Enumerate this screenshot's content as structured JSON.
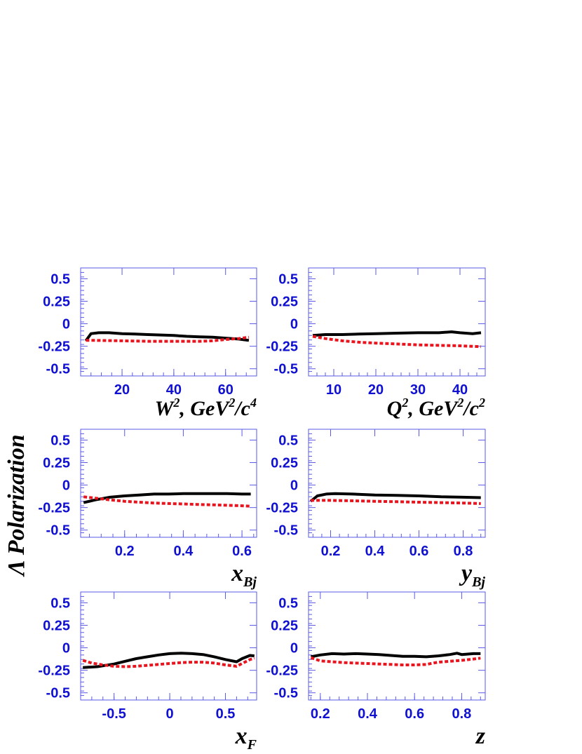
{
  "figure": {
    "ylabel": "Λ Polarization"
  },
  "colors": {
    "tick_label": "#1010d0",
    "frame": "#5a5ae6",
    "series_solid": "#000000",
    "series_dotted": "#e8141e"
  },
  "chart_data": [
    {
      "type": "line",
      "xlabel": "W², GeV²/c⁴",
      "xlabel_parts": {
        "base": "W",
        "sup1": "2",
        "mid": ", GeV",
        "sup2": "2",
        "tail": "/c",
        "sup3": "4"
      },
      "xlim": [
        4,
        72
      ],
      "ylim": [
        -0.58,
        0.62
      ],
      "xticks": [
        20,
        40,
        60
      ],
      "xtick_labels": [
        "20",
        "40",
        "60"
      ],
      "yticks": [
        0.5,
        0.25,
        0,
        -0.25,
        -0.5
      ],
      "ytick_labels": [
        "0.5",
        "0.25",
        "0",
        "-0.25",
        "-0.5"
      ],
      "series": [
        {
          "style": "solid",
          "x": [
            6,
            8,
            11,
            15,
            20,
            25,
            30,
            35,
            40,
            45,
            50,
            55,
            60,
            65,
            69
          ],
          "y": [
            -0.19,
            -0.11,
            -0.1,
            -0.1,
            -0.11,
            -0.115,
            -0.12,
            -0.125,
            -0.13,
            -0.14,
            -0.145,
            -0.15,
            -0.16,
            -0.17,
            -0.185
          ]
        },
        {
          "style": "dotted",
          "x": [
            6,
            10,
            20,
            30,
            40,
            50,
            55,
            60,
            65,
            69
          ],
          "y": [
            -0.185,
            -0.185,
            -0.19,
            -0.195,
            -0.195,
            -0.195,
            -0.19,
            -0.175,
            -0.165,
            -0.15
          ]
        }
      ]
    },
    {
      "type": "line",
      "xlabel": "Q², GeV²/c²",
      "xlabel_parts": {
        "base": "Q",
        "sup1": "2",
        "mid": ", GeV",
        "sup2": "2",
        "tail": "/c",
        "sup3": "2"
      },
      "xlim": [
        4,
        46
      ],
      "ylim": [
        -0.58,
        0.62
      ],
      "xticks": [
        10,
        20,
        30,
        40
      ],
      "xtick_labels": [
        "10",
        "20",
        "30",
        "40"
      ],
      "yticks": [
        0.5,
        0.25,
        0,
        -0.25,
        -0.5
      ],
      "ytick_labels": [
        "0.5",
        "0.25",
        "0",
        "-0.25",
        "-0.5"
      ],
      "series": [
        {
          "style": "solid",
          "x": [
            5,
            8,
            12,
            16,
            20,
            25,
            30,
            35,
            38,
            40,
            43,
            45
          ],
          "y": [
            -0.13,
            -0.12,
            -0.12,
            -0.115,
            -0.11,
            -0.105,
            -0.1,
            -0.1,
            -0.09,
            -0.1,
            -0.11,
            -0.1
          ]
        },
        {
          "style": "dotted",
          "x": [
            5,
            8,
            12,
            16,
            20,
            25,
            30,
            35,
            40,
            45
          ],
          "y": [
            -0.14,
            -0.165,
            -0.19,
            -0.205,
            -0.215,
            -0.225,
            -0.235,
            -0.24,
            -0.245,
            -0.255
          ]
        }
      ]
    },
    {
      "type": "line",
      "xlabel": "xBj",
      "xlabel_parts": {
        "base": "x",
        "sub": "Bj"
      },
      "xlim": [
        0.05,
        0.65
      ],
      "ylim": [
        -0.58,
        0.62
      ],
      "xticks": [
        0.2,
        0.4,
        0.6
      ],
      "xtick_labels": [
        "0.2",
        "0.4",
        "0.6"
      ],
      "yticks": [
        0.5,
        0.25,
        0,
        -0.25,
        -0.5
      ],
      "ytick_labels": [
        "0.5",
        "0.25",
        "0",
        "-0.25",
        "-0.5"
      ],
      "series": [
        {
          "style": "solid",
          "x": [
            0.06,
            0.1,
            0.15,
            0.2,
            0.25,
            0.3,
            0.35,
            0.4,
            0.45,
            0.5,
            0.55,
            0.6,
            0.63
          ],
          "y": [
            -0.195,
            -0.165,
            -0.135,
            -0.12,
            -0.11,
            -0.1,
            -0.1,
            -0.095,
            -0.095,
            -0.095,
            -0.095,
            -0.1,
            -0.1
          ]
        },
        {
          "style": "dotted",
          "x": [
            0.06,
            0.1,
            0.15,
            0.2,
            0.25,
            0.3,
            0.35,
            0.4,
            0.45,
            0.5,
            0.55,
            0.6,
            0.63
          ],
          "y": [
            -0.13,
            -0.145,
            -0.165,
            -0.18,
            -0.19,
            -0.2,
            -0.205,
            -0.21,
            -0.215,
            -0.22,
            -0.225,
            -0.23,
            -0.235
          ]
        }
      ]
    },
    {
      "type": "line",
      "xlabel": "yBj",
      "xlabel_parts": {
        "base": "y",
        "sub": "Bj"
      },
      "xlim": [
        0.1,
        0.9
      ],
      "ylim": [
        -0.58,
        0.62
      ],
      "xticks": [
        0.2,
        0.4,
        0.6,
        0.8
      ],
      "xtick_labels": [
        "0.2",
        "0.4",
        "0.6",
        "0.8"
      ],
      "yticks": [
        0.5,
        0.25,
        0,
        -0.25,
        -0.5
      ],
      "ytick_labels": [
        "0.5",
        "0.25",
        "0",
        "-0.25",
        "-0.5"
      ],
      "series": [
        {
          "style": "solid",
          "x": [
            0.11,
            0.14,
            0.18,
            0.22,
            0.3,
            0.4,
            0.5,
            0.6,
            0.7,
            0.8,
            0.88
          ],
          "y": [
            -0.18,
            -0.12,
            -0.1,
            -0.095,
            -0.1,
            -0.11,
            -0.115,
            -0.12,
            -0.13,
            -0.135,
            -0.14
          ]
        },
        {
          "style": "dotted",
          "x": [
            0.11,
            0.2,
            0.3,
            0.4,
            0.5,
            0.6,
            0.7,
            0.8,
            0.88
          ],
          "y": [
            -0.17,
            -0.17,
            -0.175,
            -0.18,
            -0.185,
            -0.19,
            -0.195,
            -0.2,
            -0.205
          ]
        }
      ]
    },
    {
      "type": "line",
      "xlabel": "xF",
      "xlabel_parts": {
        "base": "x",
        "sub": "F"
      },
      "xlim": [
        -0.8,
        0.78
      ],
      "ylim": [
        -0.58,
        0.62
      ],
      "xticks": [
        -0.5,
        0,
        0.5
      ],
      "xtick_labels": [
        "-0.5",
        "0",
        "0.5"
      ],
      "yticks": [
        0.5,
        0.25,
        0,
        -0.25,
        -0.5
      ],
      "ytick_labels": [
        "0.5",
        "0.25",
        "0",
        "-0.25",
        "-0.5"
      ],
      "series": [
        {
          "style": "solid",
          "x": [
            -0.78,
            -0.65,
            -0.5,
            -0.4,
            -0.3,
            -0.2,
            -0.1,
            0.0,
            0.1,
            0.2,
            0.3,
            0.4,
            0.5,
            0.6,
            0.65,
            0.72,
            0.76
          ],
          "y": [
            -0.22,
            -0.21,
            -0.18,
            -0.15,
            -0.12,
            -0.1,
            -0.08,
            -0.065,
            -0.06,
            -0.065,
            -0.075,
            -0.1,
            -0.13,
            -0.155,
            -0.12,
            -0.085,
            -0.09
          ]
        },
        {
          "style": "dotted",
          "x": [
            -0.78,
            -0.7,
            -0.6,
            -0.5,
            -0.4,
            -0.3,
            -0.2,
            -0.1,
            0.0,
            0.1,
            0.2,
            0.3,
            0.4,
            0.5,
            0.6,
            0.65,
            0.72,
            0.76
          ],
          "y": [
            -0.14,
            -0.17,
            -0.19,
            -0.205,
            -0.21,
            -0.205,
            -0.195,
            -0.185,
            -0.175,
            -0.165,
            -0.16,
            -0.16,
            -0.17,
            -0.19,
            -0.205,
            -0.175,
            -0.13,
            -0.115
          ]
        }
      ]
    },
    {
      "type": "line",
      "xlabel": "z",
      "xlabel_parts": {
        "base": "z"
      },
      "xlim": [
        0.15,
        0.9
      ],
      "ylim": [
        -0.58,
        0.62
      ],
      "xticks": [
        0.2,
        0.4,
        0.6,
        0.8
      ],
      "xtick_labels": [
        "0.2",
        "0.4",
        "0.6",
        "0.8"
      ],
      "yticks": [
        0.5,
        0.25,
        0,
        -0.25,
        -0.5
      ],
      "ytick_labels": [
        "0.5",
        "0.25",
        "0",
        "-0.25",
        "-0.5"
      ],
      "series": [
        {
          "style": "solid",
          "x": [
            0.16,
            0.2,
            0.25,
            0.3,
            0.35,
            0.4,
            0.45,
            0.5,
            0.55,
            0.6,
            0.65,
            0.7,
            0.75,
            0.78,
            0.8,
            0.85,
            0.88
          ],
          "y": [
            -0.1,
            -0.08,
            -0.065,
            -0.07,
            -0.065,
            -0.07,
            -0.075,
            -0.085,
            -0.095,
            -0.095,
            -0.1,
            -0.09,
            -0.075,
            -0.06,
            -0.075,
            -0.065,
            -0.065
          ]
        },
        {
          "style": "dotted",
          "x": [
            0.16,
            0.2,
            0.25,
            0.3,
            0.35,
            0.4,
            0.45,
            0.5,
            0.55,
            0.6,
            0.65,
            0.7,
            0.75,
            0.8,
            0.85,
            0.88
          ],
          "y": [
            -0.11,
            -0.145,
            -0.155,
            -0.165,
            -0.17,
            -0.175,
            -0.18,
            -0.185,
            -0.19,
            -0.19,
            -0.185,
            -0.16,
            -0.15,
            -0.14,
            -0.125,
            -0.115
          ]
        }
      ]
    }
  ]
}
